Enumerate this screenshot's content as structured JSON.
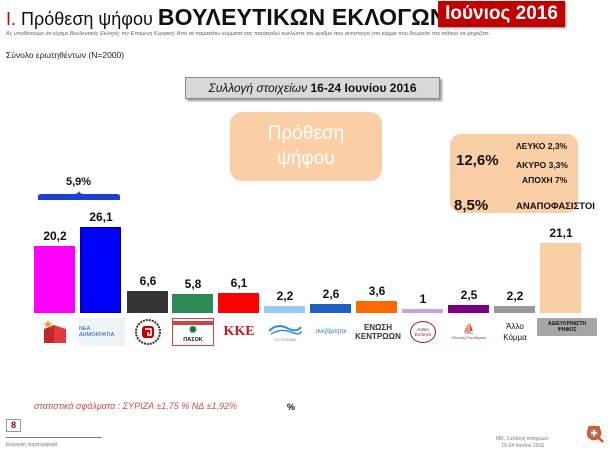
{
  "header": {
    "roman": "I.",
    "title_prefix": "Πρόθεση ψήφου",
    "title_big": "ΒΟΥΛΕΥΤΙΚΩΝ ΕΚΛΟΓΩΝ",
    "badge": "Ιούνιος  2016",
    "badge_color": "#c00000"
  },
  "intro": {
    "text": "Ας υποθέσουμε ότι είχαμε Βουλευτικές Εκλογές την Επόμενη Κυριακή. Από τα παρακάτω κόμματα σας παρακαλώ κυκλώστε τον αριθμό που αντιστοιχεί στο κόμμα που θεωρείτε πιο πιθανό να ψηφίζατε.",
    "total": "Σύνολο ερωτηθέντων (N=2000)"
  },
  "collection": {
    "label_italic": "Συλλογή στοιχείων",
    "label_bold": "16-24 Ιουνίου 2016"
  },
  "intent_box": {
    "line1": "Πρόθεση",
    "line2": "ψήφου"
  },
  "undecided_box": {
    "total_invalid": "12,6%",
    "blank": "ΛΕΥΚΟ 2,3%",
    "void": "ΑΚΥΡΟ 3,3%",
    "abstain": "ΑΠΟΧΗ 7%",
    "undecided_value": "8,5%",
    "undecided_label": "ΑΝΑΠΟΦΑΣΙΣΤΟΙ"
  },
  "gap_annotation": "5,9%",
  "chart_data": {
    "type": "bar",
    "title": "Πρόθεση ψήφου ΒΟΥΛΕΥΤΙΚΩΝ ΕΚΛΟΓΩΝ - Ιούνιος 2016",
    "xlabel": "",
    "ylabel": "%",
    "grid": false,
    "categories": [
      "ΣΥΡΙΖΑ",
      "ΝΕΑ ΔΗΜΟΚΡΑΤΙΑ",
      "ΧΡΥΣΗ ΑΥΓΗ",
      "ΠΑΣΟΚ-ΔΗΜΑΡ",
      "ΚΚΕ",
      "ΤΟ ΠΟΤΑΜΙ",
      "ΑΝΕΞΑΡΤΗΤΟΙ ΕΛΛΗΝΕΣ",
      "ΕΝΩΣΗ ΚΕΝΤΡΩΩΝ",
      "ΛΑΙΚΗ ΕΝΟΤΗΤΑ",
      "ΠΛΕΥΣΗ ΕΛΕΥΘΕΡΙΑΣ",
      "Άλλο Κόμμα",
      "ΑΔΙΕΥΚΡΙΝΙΣΤΗ ΨΗΦΟΣ"
    ],
    "values": [
      20.2,
      26.1,
      6.6,
      5.8,
      6.1,
      2.2,
      2.6,
      3.6,
      1,
      2.5,
      2.2,
      21.1
    ],
    "value_labels": [
      "20,2",
      "26,1",
      "6,6",
      "5,8",
      "6,1",
      "2,2",
      "2,6",
      "3,6",
      "1",
      "2,5",
      "2,2",
      "21,1"
    ],
    "colors": [
      "#ff00ff",
      "#0000ff",
      "#333333",
      "#2e8b57",
      "#ff0000",
      "#99ccf5",
      "#1f5fbf",
      "#ff6a00",
      "#c9a0e8",
      "#7a0080",
      "#999999",
      "#fbcfa6"
    ],
    "annotations": [
      "ΝΔ - ΣΥΡΙΖΑ difference: 5,9%"
    ],
    "ylim": [
      0,
      30
    ]
  },
  "logos": {
    "syriza": "ΣΥΡΙΖΑ",
    "nd": "ΝΕΑ ΔΗΜΟΚΡΑΤΙΑ",
    "xa": "卍",
    "pasok": "ΠΑΣΟΚ",
    "kke": "ΚΚΕ",
    "potami": "ΤΟ ΠΟΤΑΜΙ",
    "anel": "ανεξάρτητοι",
    "ek_line1": "ΕΝΩΣΗ",
    "ek_line2": "ΚΕΝΤΡΩΩΝ",
    "le": "Λαϊκή Ενότητα",
    "pleusi": "Πλεύση Ελευθερίας",
    "other_line1": "Άλλο",
    "other_line2": "Κόμμα",
    "undecided_line1": "ΑΔΙΕΥΚΡΙΝΙΣΤΗ",
    "undecided_line2": "ΨΗΦΟΣ"
  },
  "footer": {
    "errors": "στατιστικά σφάλματα : ΣΥΡΙΖΑ ±1,75 % ΝΔ ±1,92%",
    "percent_symbol": "%",
    "page_number": "8",
    "section": "Εκλογική συμπεριφορά",
    "source_line1": "MR, Συλλογή στοιχείων:",
    "source_line2": "16-24 Ιουνίου 2016"
  }
}
